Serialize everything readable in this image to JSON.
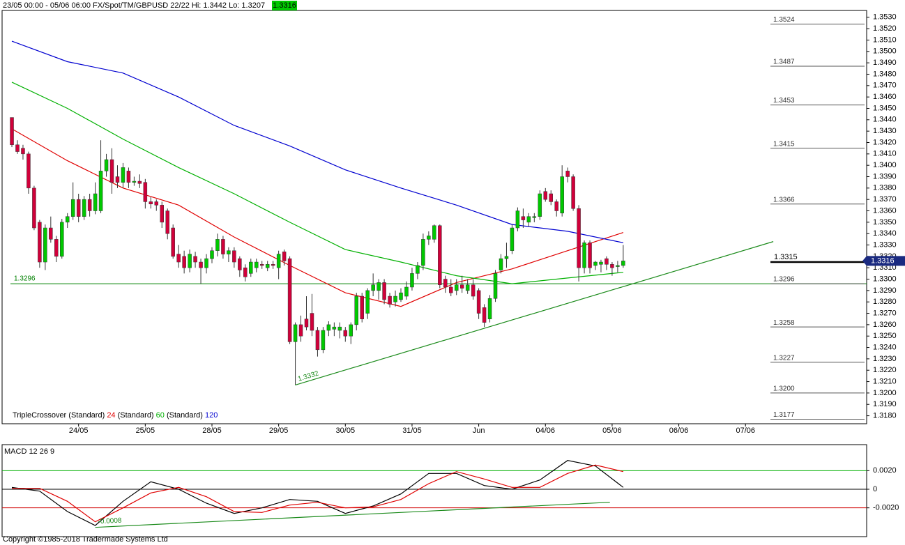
{
  "header": {
    "text": "23/05 00:00 - 05/06 06:00 FX/Spot/TM/GBPUSD 22/22 Hi: 1.3442 Lo: 1.3207",
    "last": "1.3316"
  },
  "footer": "Copyright ©1985-2018 Tradermade Systems Ltd",
  "chart_data": [
    {
      "type": "candlestick",
      "up_color": "#00c800",
      "down_color": "#d0003a",
      "xlim": [
        -1.76,
        153.8
      ],
      "ylim": [
        1.3173,
        1.3536
      ],
      "xticks": [
        {
          "value": 12,
          "label": "24/05"
        },
        {
          "value": 24,
          "label": "25/05"
        },
        {
          "value": 36,
          "label": "28/05"
        },
        {
          "value": 48,
          "label": "29/05"
        },
        {
          "value": 60,
          "label": "30/05"
        },
        {
          "value": 72,
          "label": "31/05"
        },
        {
          "value": 84,
          "label": "Jun"
        },
        {
          "value": 96,
          "label": "04/06"
        },
        {
          "value": 108,
          "label": "05/06"
        },
        {
          "value": 120,
          "label": "06/06"
        },
        {
          "value": 132,
          "label": "07/06"
        }
      ],
      "yticks": [
        {
          "value": 1.318,
          "label": "1.3180"
        },
        {
          "value": 1.319,
          "label": "1.3190"
        },
        {
          "value": 1.32,
          "label": "1.3200"
        },
        {
          "value": 1.321,
          "label": "1.3210"
        },
        {
          "value": 1.322,
          "label": "1.3220"
        },
        {
          "value": 1.323,
          "label": "1.3230"
        },
        {
          "value": 1.324,
          "label": "1.3240"
        },
        {
          "value": 1.325,
          "label": "1.3250"
        },
        {
          "value": 1.326,
          "label": "1.3260"
        },
        {
          "value": 1.327,
          "label": "1.3270"
        },
        {
          "value": 1.328,
          "label": "1.3280"
        },
        {
          "value": 1.329,
          "label": "1.3290"
        },
        {
          "value": 1.33,
          "label": "1.3300"
        },
        {
          "value": 1.331,
          "label": "1.3310"
        },
        {
          "value": 1.332,
          "label": "1.3320"
        },
        {
          "value": 1.333,
          "label": "1.3330"
        },
        {
          "value": 1.334,
          "label": "1.3340"
        },
        {
          "value": 1.335,
          "label": "1.3350"
        },
        {
          "value": 1.336,
          "label": "1.3360"
        },
        {
          "value": 1.337,
          "label": "1.3370"
        },
        {
          "value": 1.338,
          "label": "1.3380"
        },
        {
          "value": 1.339,
          "label": "1.3390"
        },
        {
          "value": 1.34,
          "label": "1.3400"
        },
        {
          "value": 1.341,
          "label": "1.3410"
        },
        {
          "value": 1.342,
          "label": "1.3420"
        },
        {
          "value": 1.343,
          "label": "1.3430"
        },
        {
          "value": 1.344,
          "label": "1.3440"
        },
        {
          "value": 1.345,
          "label": "1.3450"
        },
        {
          "value": 1.346,
          "label": "1.3460"
        },
        {
          "value": 1.347,
          "label": "1.3470"
        },
        {
          "value": 1.348,
          "label": "1.3480"
        },
        {
          "value": 1.349,
          "label": "1.3490"
        },
        {
          "value": 1.35,
          "label": "1.3500"
        },
        {
          "value": 1.351,
          "label": "1.3510"
        },
        {
          "value": 1.352,
          "label": "1.3520"
        },
        {
          "value": 1.353,
          "label": "1.3530"
        }
      ],
      "candles": [
        [
          1.3442,
          1.3442,
          1.3416,
          1.3418
        ],
        [
          1.3418,
          1.3422,
          1.341,
          1.3412
        ],
        [
          1.3415,
          1.3418,
          1.3405,
          1.341
        ],
        [
          1.341,
          1.3412,
          1.3375,
          1.338
        ],
        [
          1.338,
          1.3382,
          1.3343,
          1.3345
        ],
        [
          1.335,
          1.3352,
          1.331,
          1.3315
        ],
        [
          1.3315,
          1.3348,
          1.3308,
          1.3345
        ],
        [
          1.3345,
          1.3355,
          1.3332,
          1.3335
        ],
        [
          1.3335,
          1.3338,
          1.3315,
          1.332
        ],
        [
          1.332,
          1.3353,
          1.3318,
          1.335
        ],
        [
          1.335,
          1.3358,
          1.3345,
          1.3355
        ],
        [
          1.3355,
          1.3385,
          1.3352,
          1.337
        ],
        [
          1.337,
          1.3375,
          1.335,
          1.3355
        ],
        [
          1.3355,
          1.3373,
          1.3352,
          1.337
        ],
        [
          1.337,
          1.3375,
          1.3355,
          1.336
        ],
        [
          1.336,
          1.3385,
          1.3357,
          1.3375
        ],
        [
          1.336,
          1.3422,
          1.3358,
          1.3395
        ],
        [
          1.3395,
          1.341,
          1.339,
          1.3405
        ],
        [
          1.3405,
          1.3415,
          1.3375,
          1.3385
        ],
        [
          1.339,
          1.34,
          1.338,
          1.3385
        ],
        [
          1.3385,
          1.3402,
          1.338,
          1.3398
        ],
        [
          1.3395,
          1.3398,
          1.338,
          1.3385
        ],
        [
          1.3385,
          1.339,
          1.3382,
          1.3386
        ],
        [
          1.3386,
          1.3392,
          1.338,
          1.3384
        ],
        [
          1.3385,
          1.3388,
          1.3362,
          1.3368
        ],
        [
          1.3368,
          1.3372,
          1.3362,
          1.3366
        ],
        [
          1.3368,
          1.337,
          1.336,
          1.3365
        ],
        [
          1.3365,
          1.3368,
          1.3345,
          1.335
        ],
        [
          1.336,
          1.3362,
          1.3335,
          1.334
        ],
        [
          1.3345,
          1.3348,
          1.3318,
          1.332
        ],
        [
          1.3322,
          1.333,
          1.331,
          1.3315
        ],
        [
          1.332,
          1.3325,
          1.3305,
          1.331
        ],
        [
          1.331,
          1.3326,
          1.3306,
          1.3322
        ],
        [
          1.332,
          1.3324,
          1.331,
          1.3315
        ],
        [
          1.3315,
          1.3318,
          1.3296,
          1.331
        ],
        [
          1.331,
          1.3322,
          1.3305,
          1.3318
        ],
        [
          1.3318,
          1.3328,
          1.3314,
          1.3325
        ],
        [
          1.3325,
          1.334,
          1.332,
          1.3335
        ],
        [
          1.3335,
          1.3338,
          1.3318,
          1.3322
        ],
        [
          1.3322,
          1.3328,
          1.3315,
          1.3325
        ],
        [
          1.3325,
          1.3328,
          1.331,
          1.3315
        ],
        [
          1.3318,
          1.332,
          1.3302,
          1.3308
        ],
        [
          1.331,
          1.3313,
          1.3298,
          1.3302
        ],
        [
          1.3305,
          1.3318,
          1.3302,
          1.3315
        ],
        [
          1.331,
          1.3318,
          1.3306,
          1.3315
        ],
        [
          1.3313,
          1.3316,
          1.3309,
          1.3312
        ],
        [
          1.331,
          1.3316,
          1.3307,
          1.3313
        ],
        [
          1.3313,
          1.3316,
          1.3309,
          1.3312
        ],
        [
          1.331,
          1.3325,
          1.33,
          1.3322
        ],
        [
          1.3324,
          1.3326,
          1.3312,
          1.3316
        ],
        [
          1.3318,
          1.332,
          1.3243,
          1.3245
        ],
        [
          1.3245,
          1.3262,
          1.3207,
          1.326
        ],
        [
          1.326,
          1.3268,
          1.3245,
          1.325
        ],
        [
          1.3265,
          1.3285,
          1.3255,
          1.3258
        ],
        [
          1.327,
          1.3287,
          1.325,
          1.3255
        ],
        [
          1.3255,
          1.3258,
          1.3232,
          1.3238
        ],
        [
          1.3238,
          1.3258,
          1.3235,
          1.3255
        ],
        [
          1.3255,
          1.3263,
          1.325,
          1.326
        ],
        [
          1.3256,
          1.3262,
          1.325,
          1.3258
        ],
        [
          1.3255,
          1.3262,
          1.3248,
          1.3258
        ],
        [
          1.3255,
          1.3258,
          1.3245,
          1.325
        ],
        [
          1.325,
          1.3262,
          1.3243,
          1.326
        ],
        [
          1.326,
          1.3288,
          1.3255,
          1.3285
        ],
        [
          1.3285,
          1.3288,
          1.3262,
          1.3265
        ],
        [
          1.327,
          1.3292,
          1.3265,
          1.329
        ],
        [
          1.329,
          1.3305,
          1.3285,
          1.3295
        ],
        [
          1.329,
          1.33,
          1.3282,
          1.3297
        ],
        [
          1.3297,
          1.33,
          1.3278,
          1.3282
        ],
        [
          1.3285,
          1.3288,
          1.3275,
          1.3278
        ],
        [
          1.328,
          1.329,
          1.3276,
          1.3285
        ],
        [
          1.3282,
          1.3292,
          1.328,
          1.3288
        ],
        [
          1.3285,
          1.3298,
          1.3282,
          1.3293
        ],
        [
          1.3293,
          1.331,
          1.329,
          1.3305
        ],
        [
          1.3305,
          1.3315,
          1.33,
          1.3312
        ],
        [
          1.3312,
          1.334,
          1.3308,
          1.3335
        ],
        [
          1.3335,
          1.3342,
          1.333,
          1.3338
        ],
        [
          1.3335,
          1.3348,
          1.3332,
          1.3347
        ],
        [
          1.3347,
          1.3348,
          1.3292,
          1.3295
        ],
        [
          1.33,
          1.3303,
          1.3288,
          1.3293
        ],
        [
          1.3293,
          1.33,
          1.3285,
          1.3288
        ],
        [
          1.329,
          1.33,
          1.3286,
          1.3295
        ],
        [
          1.3295,
          1.3303,
          1.3288,
          1.3292
        ],
        [
          1.329,
          1.33,
          1.3287,
          1.3295
        ],
        [
          1.3295,
          1.33,
          1.3282,
          1.3285
        ],
        [
          1.329,
          1.3292,
          1.3265,
          1.327
        ],
        [
          1.3275,
          1.3278,
          1.3258,
          1.3262
        ],
        [
          1.3265,
          1.3286,
          1.3262,
          1.3283
        ],
        [
          1.3283,
          1.3308,
          1.328,
          1.3305
        ],
        [
          1.3308,
          1.3322,
          1.3305,
          1.3318
        ],
        [
          1.3318,
          1.3332,
          1.331,
          1.332
        ],
        [
          1.3325,
          1.3348,
          1.3322,
          1.3345
        ],
        [
          1.3345,
          1.3363,
          1.3342,
          1.336
        ],
        [
          1.3355,
          1.3362,
          1.3345,
          1.3352
        ],
        [
          1.335,
          1.3358,
          1.3346,
          1.3355
        ],
        [
          1.3354,
          1.3358,
          1.335,
          1.3355
        ],
        [
          1.3355,
          1.3378,
          1.3352,
          1.3375
        ],
        [
          1.3377,
          1.338,
          1.3368,
          1.337
        ],
        [
          1.3375,
          1.3378,
          1.3365,
          1.3368
        ],
        [
          1.3368,
          1.337,
          1.3355,
          1.336
        ],
        [
          1.3358,
          1.34,
          1.3355,
          1.339
        ],
        [
          1.3395,
          1.3398,
          1.3385,
          1.339
        ],
        [
          1.339,
          1.3392,
          1.336,
          1.3362
        ],
        [
          1.3362,
          1.3365,
          1.3298,
          1.331
        ],
        [
          1.331,
          1.3334,
          1.3305,
          1.3332
        ],
        [
          1.3332,
          1.3334,
          1.3305,
          1.331
        ],
        [
          1.3312,
          1.3316,
          1.3308,
          1.3315
        ],
        [
          1.3313,
          1.3317,
          1.3306,
          1.3315
        ],
        [
          1.3318,
          1.332,
          1.3308,
          1.3313
        ],
        [
          1.3313,
          1.3315,
          1.3303,
          1.331
        ],
        [
          1.3311,
          1.3316,
          1.3306,
          1.3312
        ],
        [
          1.3312,
          1.333,
          1.331,
          1.3316
        ]
      ],
      "x": [
        0,
        10,
        20,
        30,
        40,
        50,
        60,
        70,
        80,
        90,
        100,
        110
      ],
      "series": [
        {
          "name": "24",
          "color": "#e00000",
          "values": [
            1.3432,
            1.3404,
            1.338,
            1.3365,
            1.3337,
            1.3312,
            1.3288,
            1.3276,
            1.3297,
            1.3309,
            1.3325,
            1.3341
          ]
        },
        {
          "name": "60",
          "color": "#00b000",
          "values": [
            1.3473,
            1.345,
            1.3423,
            1.3398,
            1.3375,
            1.335,
            1.3326,
            1.3315,
            1.3303,
            1.3296,
            1.3301,
            1.3306
          ]
        },
        {
          "name": "120",
          "color": "#0000d0",
          "values": [
            1.3509,
            1.3491,
            1.3481,
            1.346,
            1.3435,
            1.3417,
            1.3396,
            1.338,
            1.3365,
            1.3348,
            1.3342,
            1.3332
          ]
        }
      ],
      "legend_labels": [
        "TripleCrossover (Standard)",
        "(Standard)",
        "(Standard)"
      ],
      "levels": [
        1.3524,
        1.3487,
        1.3453,
        1.3415,
        1.3366,
        1.3296,
        1.3258,
        1.3227,
        {
          "value": 1.32,
          "label": "1.3200"
        },
        1.3177
      ],
      "last_level": 1.3315,
      "last_price": 1.3316,
      "support": 1.3296,
      "support_color": "#008000",
      "trendline": {
        "x": [
          51,
          137
        ],
        "y": [
          1.3207,
          1.3333
        ],
        "label": "1.3332",
        "color": "#1a8a1a"
      }
    },
    {
      "type": "line",
      "title": "MACD 12 26 9",
      "xlim": [
        -1.76,
        153.8
      ],
      "ylim": [
        -0.0051,
        0.0048
      ],
      "yticks": [
        {
          "value": 0.002,
          "label": "0.0020"
        },
        0,
        {
          "value": -0.002,
          "label": "-0.0020"
        }
      ],
      "grid_colors": [
        "#00b000",
        "#000000",
        "#d00000"
      ],
      "x": [
        0,
        5,
        10,
        15,
        20,
        25,
        30,
        35,
        40,
        45,
        50,
        55,
        60,
        65,
        70,
        75,
        80,
        85,
        90,
        95,
        100,
        105,
        110
      ],
      "series": [
        {
          "color": "#000000",
          "values": [
            0.0002,
            -0.0002,
            -0.0024,
            -0.0039,
            -0.0013,
            0.0008,
            0.0,
            -0.0015,
            -0.0026,
            -0.002,
            -0.0011,
            -0.0013,
            -0.0026,
            -0.0018,
            -0.0005,
            0.0017,
            0.0017,
            0.0004,
            0.0,
            0.001,
            0.0031,
            0.0025,
            0.0002
          ]
        },
        {
          "color": "#e00000",
          "values": [
            0.0001,
            0.0001,
            -0.0013,
            -0.0035,
            -0.002,
            -0.0004,
            0.0002,
            -0.0008,
            -0.0024,
            -0.0025,
            -0.0017,
            -0.0014,
            -0.002,
            -0.0019,
            -0.0011,
            0.0006,
            0.0019,
            0.0011,
            0.0002,
            0.0002,
            0.0017,
            0.0026,
            0.0019
          ]
        }
      ],
      "trendline": {
        "x": [
          15,
          107.6
        ],
        "y": [
          -0.0041,
          -0.0014
        ],
        "label": "-0.0008",
        "color": "#1a8a1a"
      }
    }
  ]
}
